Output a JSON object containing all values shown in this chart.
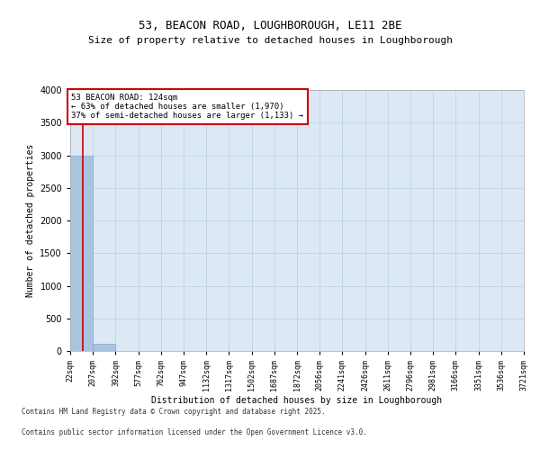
{
  "title": "53, BEACON ROAD, LOUGHBOROUGH, LE11 2BE",
  "subtitle": "Size of property relative to detached houses in Loughborough",
  "xlabel": "Distribution of detached houses by size in Loughborough",
  "ylabel": "Number of detached properties",
  "bin_edges": [
    22,
    207,
    392,
    577,
    762,
    947,
    1132,
    1317,
    1502,
    1687,
    1872,
    2056,
    2241,
    2426,
    2611,
    2796,
    2981,
    3166,
    3351,
    3536,
    3721
  ],
  "bar_heights": [
    3000,
    110,
    5,
    2,
    1,
    1,
    0,
    0,
    0,
    0,
    0,
    0,
    0,
    0,
    0,
    0,
    0,
    0,
    0,
    0
  ],
  "bar_color": "#aac4e0",
  "bar_edge_color": "#7bafd4",
  "property_size": 124,
  "property_line_color": "#cc0000",
  "annotation_text": "53 BEACON ROAD: 124sqm\n← 63% of detached houses are smaller (1,970)\n37% of semi-detached houses are larger (1,133) →",
  "annotation_box_color": "#ffffff",
  "annotation_box_edge_color": "#cc0000",
  "ylim": [
    0,
    4000
  ],
  "yticks": [
    0,
    500,
    1000,
    1500,
    2000,
    2500,
    3000,
    3500,
    4000
  ],
  "background_color": "#dce9f5",
  "grid_color": "#b8cfe8",
  "footer_line1": "Contains HM Land Registry data © Crown copyright and database right 2025.",
  "footer_line2": "Contains public sector information licensed under the Open Government Licence v3.0.",
  "title_fontsize": 9,
  "subtitle_fontsize": 8,
  "tick_fontsize": 6,
  "ylabel_fontsize": 7,
  "xlabel_fontsize": 7,
  "annotation_fontsize": 6.5,
  "footer_fontsize": 5.5
}
